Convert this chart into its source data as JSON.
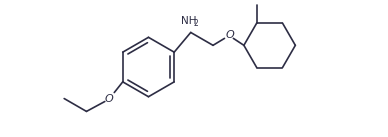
{
  "bg_color": "#ffffff",
  "line_color": "#2d2d44",
  "text_color": "#2d2d44",
  "figsize": [
    3.88,
    1.37
  ],
  "dpi": 100,
  "NH2_label": "NH",
  "NH2_sub": "2",
  "O_label": "O"
}
